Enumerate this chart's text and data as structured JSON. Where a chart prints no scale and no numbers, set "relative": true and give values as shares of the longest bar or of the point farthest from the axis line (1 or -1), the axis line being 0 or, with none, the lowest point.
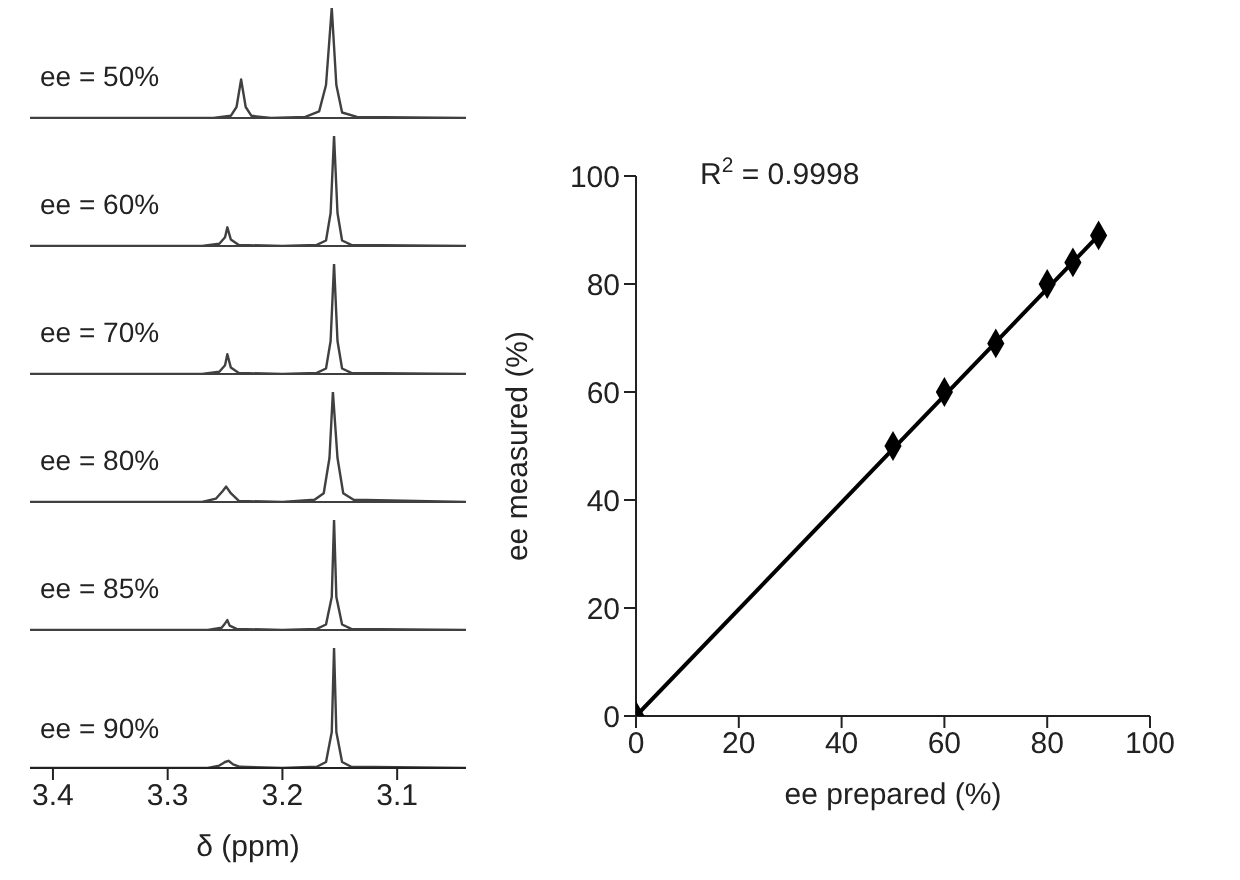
{
  "chart_data": [
    {
      "type": "line",
      "title": "ee = 50%",
      "relative": true,
      "xlim": [
        3.42,
        3.04
      ],
      "xticks": [
        3.4,
        3.3,
        3.2,
        3.1
      ],
      "tick_labels": false,
      "marker": "none",
      "series": [
        {
          "color": "#404040",
          "x": [
            3.42,
            3.26,
            3.245,
            3.24,
            3.236,
            3.232,
            3.227,
            3.21,
            3.18,
            3.168,
            3.162,
            3.157,
            3.153,
            3.148,
            3.135,
            3.04
          ],
          "values": [
            0,
            0,
            0.02,
            0.1,
            0.35,
            0.1,
            0.02,
            0,
            0.01,
            0.06,
            0.3,
            1,
            0.3,
            0.05,
            0.01,
            0
          ]
        }
      ]
    },
    {
      "type": "line",
      "title": "ee = 60%",
      "relative": true,
      "xlim": [
        3.42,
        3.04
      ],
      "xticks": [
        3.4,
        3.3,
        3.2,
        3.1
      ],
      "tick_labels": false,
      "marker": "none",
      "series": [
        {
          "color": "#404040",
          "x": [
            3.42,
            3.27,
            3.255,
            3.25,
            3.248,
            3.245,
            3.238,
            3.2,
            3.17,
            3.162,
            3.158,
            3.155,
            3.152,
            3.148,
            3.14,
            3.04
          ],
          "values": [
            0,
            0,
            0.02,
            0.08,
            0.17,
            0.06,
            0.01,
            0,
            0.01,
            0.05,
            0.3,
            1,
            0.3,
            0.05,
            0.01,
            0
          ]
        }
      ]
    },
    {
      "type": "line",
      "title": "ee = 70%",
      "relative": true,
      "xlim": [
        3.42,
        3.04
      ],
      "xticks": [
        3.4,
        3.3,
        3.2,
        3.1
      ],
      "tick_labels": false,
      "marker": "none",
      "series": [
        {
          "color": "#404040",
          "x": [
            3.42,
            3.27,
            3.255,
            3.25,
            3.248,
            3.245,
            3.238,
            3.2,
            3.17,
            3.162,
            3.158,
            3.155,
            3.152,
            3.148,
            3.14,
            3.04
          ],
          "values": [
            0,
            0,
            0.02,
            0.08,
            0.18,
            0.06,
            0.01,
            0,
            0.01,
            0.05,
            0.3,
            1,
            0.3,
            0.05,
            0.01,
            0
          ]
        }
      ]
    },
    {
      "type": "line",
      "title": "ee = 80%",
      "relative": true,
      "xlim": [
        3.42,
        3.04
      ],
      "xticks": [
        3.4,
        3.3,
        3.2,
        3.1
      ],
      "tick_labels": false,
      "marker": "none",
      "series": [
        {
          "color": "#404040",
          "x": [
            3.42,
            3.27,
            3.258,
            3.252,
            3.249,
            3.245,
            3.238,
            3.2,
            3.172,
            3.164,
            3.159,
            3.156,
            3.152,
            3.147,
            3.138,
            3.04
          ],
          "values": [
            0,
            0,
            0.03,
            0.1,
            0.14,
            0.08,
            0.01,
            0,
            0.02,
            0.08,
            0.4,
            1,
            0.4,
            0.08,
            0.02,
            0
          ]
        }
      ]
    },
    {
      "type": "line",
      "title": "ee = 85%",
      "relative": true,
      "xlim": [
        3.42,
        3.04
      ],
      "xticks": [
        3.4,
        3.3,
        3.2,
        3.1
      ],
      "tick_labels": false,
      "marker": "none",
      "series": [
        {
          "color": "#404040",
          "x": [
            3.42,
            3.265,
            3.253,
            3.25,
            3.248,
            3.246,
            3.24,
            3.2,
            3.17,
            3.162,
            3.157,
            3.155,
            3.153,
            3.148,
            3.14,
            3.04
          ],
          "values": [
            0,
            0,
            0.02,
            0.06,
            0.09,
            0.04,
            0.01,
            0,
            0.01,
            0.05,
            0.3,
            1,
            0.3,
            0.05,
            0.01,
            0
          ]
        }
      ]
    },
    {
      "type": "line",
      "title": "ee = 90%",
      "relative": true,
      "xlim": [
        3.42,
        3.04
      ],
      "xticks": [
        3.4,
        3.3,
        3.2,
        3.1
      ],
      "tick_labels": "x",
      "xlabel": "δ (ppm)",
      "marker": "none",
      "series": [
        {
          "color": "#404040",
          "x": [
            3.42,
            3.265,
            3.255,
            3.25,
            3.247,
            3.243,
            3.237,
            3.2,
            3.17,
            3.162,
            3.157,
            3.155,
            3.153,
            3.148,
            3.14,
            3.04
          ],
          "values": [
            0,
            0,
            0.02,
            0.05,
            0.06,
            0.03,
            0.01,
            0,
            0.01,
            0.05,
            0.3,
            1,
            0.3,
            0.05,
            0.01,
            0
          ]
        }
      ]
    },
    {
      "type": "scatter",
      "xlabel": "ee prepared (%)",
      "ylabel": "ee measured (%)",
      "xlim": [
        0,
        100
      ],
      "ylim": [
        0,
        100
      ],
      "xticks": [
        0,
        20,
        40,
        60,
        80,
        100
      ],
      "yticks": [
        0,
        20,
        40,
        60,
        80,
        100
      ],
      "annotations": [
        "R$^{2}$ = 0.9998"
      ],
      "series": [
        {
          "type": "scatter",
          "marker": "diamond",
          "color": "#000000",
          "x": [
            0,
            50,
            60,
            70,
            80,
            85,
            90
          ],
          "values": [
            0,
            50,
            60,
            69,
            80,
            84,
            89
          ]
        },
        {
          "type": "line",
          "marker": "none",
          "color": "#000000",
          "x": [
            0,
            90
          ],
          "values": [
            0,
            89
          ]
        }
      ]
    }
  ]
}
